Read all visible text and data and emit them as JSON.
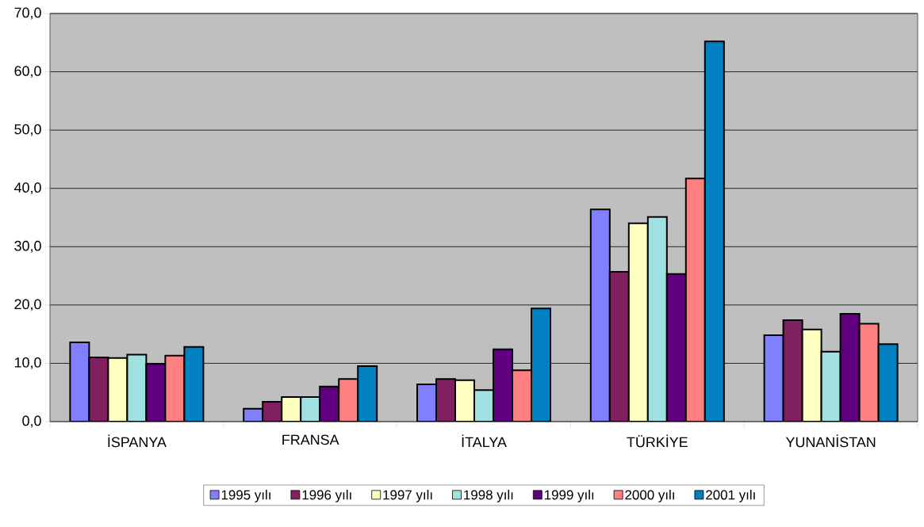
{
  "chart_data": {
    "type": "bar",
    "categories": [
      "İSPANYA",
      "FRANSA",
      "İTALYA",
      "TÜRKİYE",
      "YUNANİSTAN"
    ],
    "series": [
      {
        "name": "1995 yılı",
        "color": "#8080ff",
        "values": [
          13.6,
          2.2,
          6.4,
          36.4,
          14.8
        ]
      },
      {
        "name": "1996 yılı",
        "color": "#802060",
        "values": [
          11.0,
          3.4,
          7.3,
          25.7,
          17.4
        ]
      },
      {
        "name": "1997 yılı",
        "color": "#ffffc0",
        "values": [
          10.9,
          4.2,
          7.1,
          34.0,
          15.8
        ]
      },
      {
        "name": "1998 yılı",
        "color": "#a0e0e0",
        "values": [
          11.5,
          4.2,
          5.4,
          35.1,
          12.0
        ]
      },
      {
        "name": "1999 yılı",
        "color": "#600080",
        "values": [
          9.9,
          6.0,
          12.4,
          25.3,
          18.5
        ]
      },
      {
        "name": "2000 yılı",
        "color": "#ff8080",
        "values": [
          11.3,
          7.3,
          8.8,
          41.7,
          16.8
        ]
      },
      {
        "name": "2001 yılı",
        "color": "#0080c0",
        "values": [
          12.8,
          9.5,
          19.4,
          65.2,
          13.3
        ]
      }
    ],
    "ylim": [
      0,
      70
    ],
    "yticks": [
      {
        "value": 0,
        "label": "0,0"
      },
      {
        "value": 10,
        "label": "10,0"
      },
      {
        "value": 20,
        "label": "20,0"
      },
      {
        "value": 30,
        "label": "30,0"
      },
      {
        "value": 40,
        "label": "40,0"
      },
      {
        "value": 50,
        "label": "50,0"
      },
      {
        "value": 60,
        "label": "60,0"
      },
      {
        "value": 70,
        "label": "70,0"
      }
    ],
    "grid": "y",
    "legend": "bottom"
  }
}
